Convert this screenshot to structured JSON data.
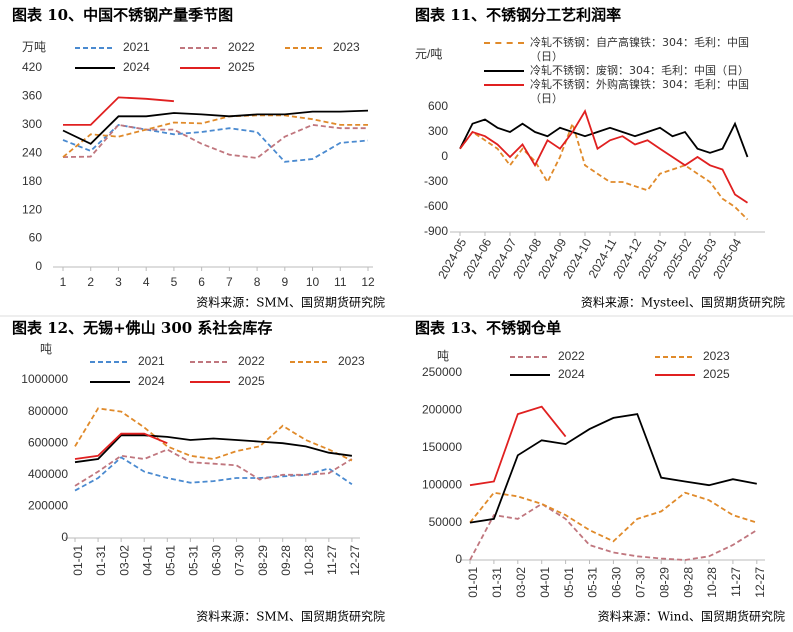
{
  "chart_data": [
    {
      "type": "line",
      "title": "图表 10、中国不锈钢产量季节图",
      "y_label": "万吨",
      "source": "资料来源：SMM、国贸期货研究院",
      "x": [
        1,
        2,
        3,
        4,
        5,
        6,
        7,
        8,
        9,
        10,
        11,
        12
      ],
      "xlim": [
        1,
        12
      ],
      "xticks": [
        1,
        2,
        3,
        4,
        5,
        6,
        7,
        8,
        9,
        10,
        11,
        12
      ],
      "ylim": [
        0,
        420
      ],
      "yticks": [
        0,
        60,
        120,
        180,
        240,
        300,
        360,
        420
      ],
      "series": [
        {
          "name": "2021",
          "color": "#4a8ad0",
          "style": "dashed",
          "values": [
            268,
            245,
            300,
            290,
            280,
            285,
            293,
            285,
            222,
            228,
            262,
            267
          ]
        },
        {
          "name": "2022",
          "color": "#c0767e",
          "style": "dashed",
          "values": [
            232,
            233,
            300,
            290,
            290,
            260,
            237,
            230,
            275,
            300,
            293,
            293
          ]
        },
        {
          "name": "2023",
          "color": "#e08a2a",
          "style": "dashed",
          "values": [
            232,
            280,
            275,
            290,
            305,
            303,
            318,
            320,
            320,
            312,
            300,
            300
          ]
        },
        {
          "name": "2024",
          "color": "#000000",
          "style": "solid",
          "values": [
            288,
            260,
            318,
            318,
            325,
            322,
            318,
            322,
            322,
            328,
            328,
            330
          ]
        },
        {
          "name": "2025",
          "color": "#e02020",
          "style": "solid",
          "values": [
            300,
            300,
            358,
            355,
            350,
            null,
            null,
            null,
            null,
            null,
            null,
            null
          ]
        }
      ]
    },
    {
      "type": "line",
      "title": "图表 11、不锈钢分工艺利润率",
      "y_label": "元/吨",
      "source": "资料来源：Mysteel、国贸期货研究院",
      "x": [
        0,
        0.5,
        1,
        1.5,
        2,
        2.5,
        3,
        3.5,
        4,
        4.5,
        5,
        5.5,
        6,
        6.5,
        7,
        7.5,
        8,
        8.5,
        9,
        9.5,
        10,
        10.5,
        11,
        11.5
      ],
      "xlim": [
        0,
        12
      ],
      "xticks": [
        {
          "value": 0,
          "label": "2024-05"
        },
        {
          "value": 1,
          "label": "2024-06"
        },
        {
          "value": 2,
          "label": "2024-07"
        },
        {
          "value": 3,
          "label": "2024-08"
        },
        {
          "value": 4,
          "label": "2024-09"
        },
        {
          "value": 5,
          "label": "2024-10"
        },
        {
          "value": 6,
          "label": "2024-11"
        },
        {
          "value": 7,
          "label": "2024-12"
        },
        {
          "value": 8,
          "label": "2025-01"
        },
        {
          "value": 9,
          "label": "2025-02"
        },
        {
          "value": 10,
          "label": "2025-03"
        },
        {
          "value": 11,
          "label": "2025-04"
        }
      ],
      "ylim": [
        -900,
        600
      ],
      "yticks": [
        -900,
        -600,
        -300,
        0,
        300,
        600
      ],
      "series": [
        {
          "name": "冷轧不锈钢：自产高镍铁：304：毛利：中国（日）",
          "color": "#e08a2a",
          "style": "dashed",
          "values": [
            100,
            300,
            200,
            100,
            -100,
            100,
            -50,
            -300,
            0,
            400,
            -100,
            -200,
            -300,
            -300,
            -350,
            -400,
            -200,
            -150,
            -100,
            -200,
            -300,
            -500,
            -600,
            -750
          ]
        },
        {
          "name": "冷轧不锈钢：废钢：304：毛利：中国（日）",
          "color": "#000000",
          "style": "solid",
          "values": [
            100,
            400,
            450,
            350,
            300,
            400,
            300,
            250,
            350,
            300,
            250,
            300,
            350,
            300,
            250,
            300,
            350,
            250,
            300,
            100,
            50,
            100,
            400,
            0
          ]
        },
        {
          "name": "冷轧不锈钢：外购高镍铁：304：毛利：中国（日）",
          "color": "#e02020",
          "style": "solid",
          "values": [
            100,
            300,
            250,
            150,
            0,
            150,
            -100,
            200,
            100,
            300,
            550,
            100,
            200,
            250,
            150,
            200,
            100,
            0,
            -100,
            0,
            -100,
            -150,
            -450,
            -550
          ]
        }
      ]
    },
    {
      "type": "line",
      "title": "图表 12、无锡+佛山 300 系社会库存",
      "y_label": "吨",
      "source": "资料来源：SMM、国贸期货研究院",
      "x": [
        1,
        31,
        61,
        91,
        121,
        151,
        181,
        211,
        241,
        271,
        301,
        331,
        361
      ],
      "xlim": [
        1,
        365
      ],
      "xticks": [
        {
          "value": 1,
          "label": "01-01"
        },
        {
          "value": 31,
          "label": "01-31"
        },
        {
          "value": 61,
          "label": "03-02"
        },
        {
          "value": 91,
          "label": "04-01"
        },
        {
          "value": 121,
          "label": "05-01"
        },
        {
          "value": 151,
          "label": "05-31"
        },
        {
          "value": 181,
          "label": "06-30"
        },
        {
          "value": 211,
          "label": "07-30"
        },
        {
          "value": 241,
          "label": "08-29"
        },
        {
          "value": 271,
          "label": "09-28"
        },
        {
          "value": 301,
          "label": "10-28"
        },
        {
          "value": 331,
          "label": "11-27"
        },
        {
          "value": 361,
          "label": "12-27"
        }
      ],
      "ylim": [
        0,
        1000000
      ],
      "yticks": [
        0,
        200000,
        400000,
        600000,
        800000,
        1000000
      ],
      "series": [
        {
          "name": "2021",
          "color": "#4a8ad0",
          "style": "dashed",
          "values": [
            300000,
            380000,
            510000,
            420000,
            380000,
            350000,
            360000,
            380000,
            380000,
            390000,
            400000,
            440000,
            340000
          ]
        },
        {
          "name": "2022",
          "color": "#c0767e",
          "style": "dashed",
          "values": [
            330000,
            420000,
            520000,
            500000,
            560000,
            480000,
            470000,
            460000,
            370000,
            400000,
            400000,
            410000,
            500000
          ]
        },
        {
          "name": "2023",
          "color": "#e08a2a",
          "style": "dashed",
          "values": [
            580000,
            820000,
            800000,
            700000,
            580000,
            520000,
            500000,
            550000,
            580000,
            710000,
            620000,
            560000,
            490000
          ]
        },
        {
          "name": "2024",
          "color": "#000000",
          "style": "solid",
          "values": [
            480000,
            500000,
            650000,
            650000,
            640000,
            620000,
            630000,
            620000,
            610000,
            600000,
            580000,
            540000,
            520000
          ]
        },
        {
          "name": "2025",
          "color": "#e02020",
          "style": "solid",
          "values": [
            500000,
            520000,
            660000,
            660000,
            600000,
            null,
            null,
            null,
            null,
            null,
            null,
            null,
            null
          ]
        }
      ]
    },
    {
      "type": "line",
      "title": "图表 13、不锈钢仓单",
      "y_label": "吨",
      "source": "资料来源：Wind、国贸期货研究院",
      "x": [
        1,
        31,
        61,
        91,
        121,
        151,
        181,
        211,
        241,
        271,
        301,
        331,
        361
      ],
      "xlim": [
        1,
        365
      ],
      "xticks": [
        {
          "value": 1,
          "label": "01-01"
        },
        {
          "value": 31,
          "label": "01-31"
        },
        {
          "value": 61,
          "label": "03-02"
        },
        {
          "value": 91,
          "label": "04-01"
        },
        {
          "value": 121,
          "label": "05-01"
        },
        {
          "value": 151,
          "label": "05-31"
        },
        {
          "value": 181,
          "label": "06-30"
        },
        {
          "value": 211,
          "label": "07-30"
        },
        {
          "value": 241,
          "label": "08-29"
        },
        {
          "value": 271,
          "label": "09-28"
        },
        {
          "value": 301,
          "label": "10-28"
        },
        {
          "value": 331,
          "label": "11-27"
        },
        {
          "value": 361,
          "label": "12-27"
        }
      ],
      "ylim": [
        0,
        250000
      ],
      "yticks": [
        0,
        50000,
        100000,
        150000,
        200000,
        250000
      ],
      "series": [
        {
          "name": "2022",
          "color": "#c0767e",
          "style": "dashed",
          "values": [
            0,
            60000,
            55000,
            75000,
            55000,
            20000,
            10000,
            5000,
            2000,
            0,
            5000,
            20000,
            40000
          ]
        },
        {
          "name": "2023",
          "color": "#e08a2a",
          "style": "dashed",
          "values": [
            50000,
            90000,
            85000,
            75000,
            60000,
            40000,
            25000,
            55000,
            65000,
            90000,
            80000,
            60000,
            50000
          ]
        },
        {
          "name": "2024",
          "color": "#000000",
          "style": "solid",
          "values": [
            50000,
            55000,
            140000,
            160000,
            155000,
            175000,
            190000,
            195000,
            110000,
            105000,
            100000,
            108000,
            102000
          ]
        },
        {
          "name": "2025",
          "color": "#e02020",
          "style": "solid",
          "values": [
            100000,
            105000,
            195000,
            205000,
            165000,
            null,
            null,
            null,
            null,
            null,
            null,
            null,
            null
          ]
        }
      ]
    }
  ]
}
